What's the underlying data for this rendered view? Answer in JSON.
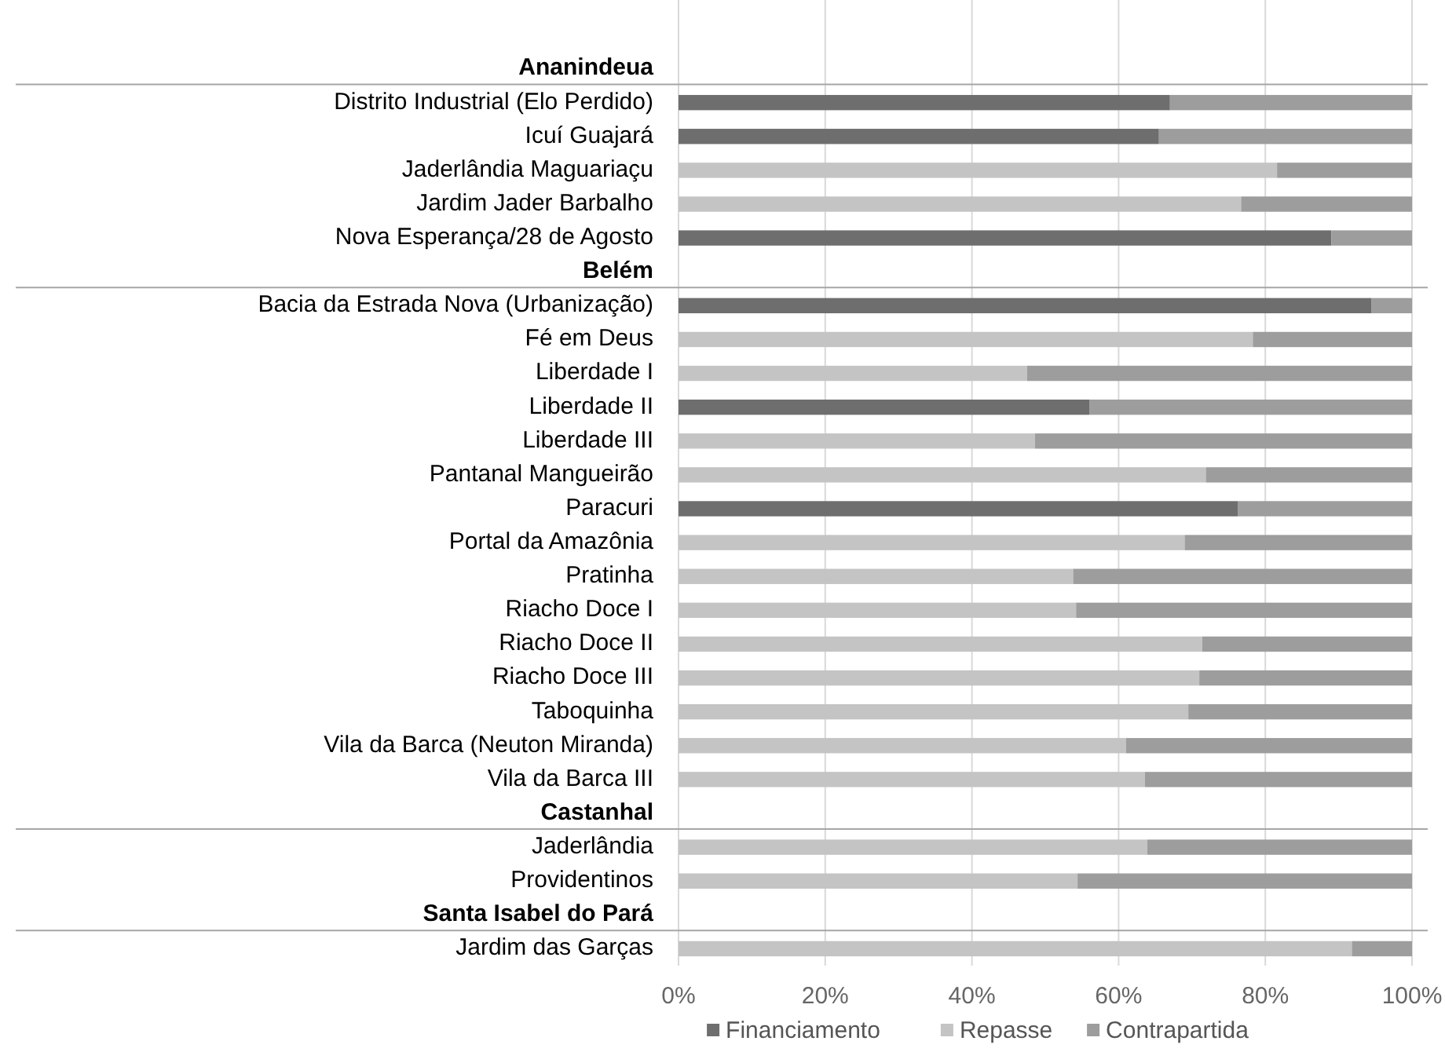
{
  "chart_data": {
    "type": "bar",
    "orientation": "horizontal",
    "stacked": true,
    "categories": [
      "Ananindeua",
      "Distrito Industrial (Elo Perdido)",
      "Icuí Guajará",
      "Jaderlândia Maguariaçu",
      "Jardim Jader Barbalho",
      "Nova Esperança/28 de Agosto",
      "Belém",
      "Bacia da Estrada Nova (Urbanização)",
      "Fé em Deus ",
      "Liberdade I",
      "Liberdade II",
      "Liberdade III",
      "Pantanal Mangueirão",
      "Paracuri",
      "Portal da Amazônia",
      "Pratinha",
      "Riacho Doce I",
      "Riacho Doce II",
      "Riacho Doce III",
      "Taboquinha",
      "Vila da Barca (Neuton Miranda)",
      "Vila da Barca III",
      "Castanhal",
      "Jaderlândia",
      "Providentinos",
      "Santa Isabel do Pará",
      "Jardim das Garças"
    ],
    "series": [
      {
        "name": "Financiamento",
        "color": "#6e6e6e",
        "values": [
          null,
          67,
          65.5,
          0,
          0,
          89,
          null,
          94.5,
          0,
          0,
          56,
          0,
          0,
          76.3,
          0,
          0,
          0,
          0,
          0,
          0,
          0,
          0,
          null,
          0,
          0,
          null,
          0
        ]
      },
      {
        "name": "Repasse",
        "color": "#c4c4c4",
        "values": [
          null,
          0,
          0,
          81.6,
          76.7,
          0,
          null,
          0,
          78.3,
          47.5,
          0,
          48.6,
          71.9,
          0,
          69,
          53.8,
          54.2,
          71.4,
          71,
          69.5,
          61,
          63.6,
          null,
          63.9,
          54.4,
          null,
          91.8
        ]
      },
      {
        "name": "Contrapartida",
        "color": "#9d9d9d",
        "values": [
          null,
          33,
          34.5,
          18.4,
          23.3,
          11,
          null,
          5.5,
          21.7,
          52.5,
          44,
          51.4,
          28.1,
          23.7,
          31,
          46.2,
          45.8,
          28.6,
          29,
          30.5,
          39,
          36.4,
          null,
          36.1,
          45.6,
          null,
          8.2
        ]
      }
    ],
    "xlim": [
      0,
      100
    ],
    "xticks": [
      {
        "value": 0,
        "label": "0%"
      },
      {
        "value": 20,
        "label": "20%"
      },
      {
        "value": 40,
        "label": "40%"
      },
      {
        "value": 60,
        "label": "60%"
      },
      {
        "value": 80,
        "label": "80%"
      },
      {
        "value": 100,
        "label": "100%"
      }
    ],
    "grid": "x",
    "legend": "bottom"
  }
}
